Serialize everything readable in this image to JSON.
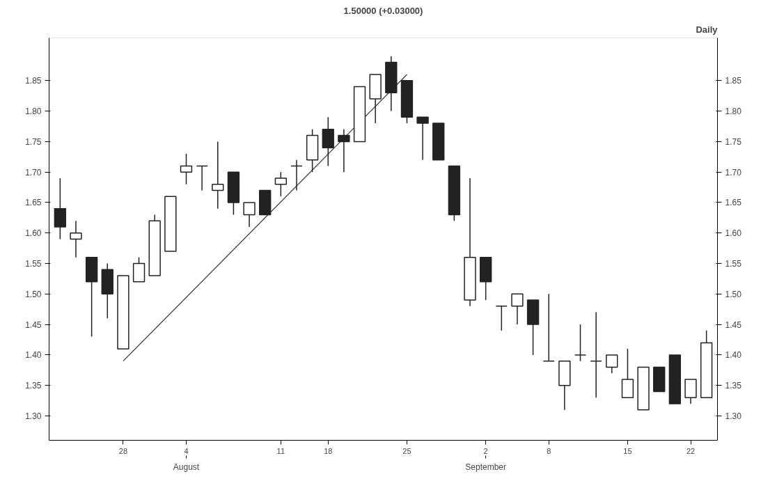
{
  "chart_data": {
    "type": "candlestick",
    "title": "1.50000 (+0.03000)",
    "annotations": [
      "Daily",
      "August",
      "September"
    ],
    "categories": [
      null,
      null,
      null,
      null,
      "28",
      null,
      null,
      null,
      "4",
      null,
      null,
      null,
      null,
      null,
      "11",
      null,
      null,
      "18",
      null,
      null,
      null,
      null,
      "25",
      null,
      null,
      null,
      null,
      "2",
      null,
      null,
      null,
      "8",
      null,
      null,
      null,
      null,
      "15",
      null,
      null,
      null,
      "22",
      null
    ],
    "ohlc": [
      [
        1.64,
        1.69,
        1.59,
        1.61
      ],
      [
        1.59,
        1.62,
        1.56,
        1.6
      ],
      [
        1.56,
        1.56,
        1.43,
        1.52
      ],
      [
        1.54,
        1.55,
        1.46,
        1.5
      ],
      [
        1.41,
        1.53,
        1.41,
        1.53
      ],
      [
        1.52,
        1.56,
        1.52,
        1.55
      ],
      [
        1.53,
        1.63,
        1.53,
        1.62
      ],
      [
        1.57,
        1.66,
        1.57,
        1.66
      ],
      [
        1.7,
        1.73,
        1.68,
        1.71
      ],
      [
        1.71,
        1.71,
        1.67,
        1.71
      ],
      [
        1.67,
        1.75,
        1.64,
        1.68
      ],
      [
        1.7,
        1.7,
        1.63,
        1.65
      ],
      [
        1.63,
        1.65,
        1.61,
        1.65
      ],
      [
        1.67,
        1.67,
        1.63,
        1.63
      ],
      [
        1.68,
        1.7,
        1.66,
        1.69
      ],
      [
        1.71,
        1.72,
        1.67,
        1.71
      ],
      [
        1.72,
        1.77,
        1.7,
        1.76
      ],
      [
        1.77,
        1.79,
        1.71,
        1.74
      ],
      [
        1.76,
        1.77,
        1.7,
        1.75
      ],
      [
        1.75,
        1.84,
        1.75,
        1.84
      ],
      [
        1.82,
        1.86,
        1.78,
        1.86
      ],
      [
        1.88,
        1.89,
        1.8,
        1.83
      ],
      [
        1.85,
        1.85,
        1.78,
        1.79
      ],
      [
        1.79,
        1.79,
        1.72,
        1.78
      ],
      [
        1.78,
        1.78,
        1.72,
        1.72
      ],
      [
        1.71,
        1.71,
        1.62,
        1.63
      ],
      [
        1.49,
        1.69,
        1.48,
        1.56
      ],
      [
        1.56,
        1.56,
        1.49,
        1.52
      ],
      [
        1.48,
        1.48,
        1.44,
        1.48
      ],
      [
        1.48,
        1.5,
        1.45,
        1.5
      ],
      [
        1.49,
        1.49,
        1.4,
        1.45
      ],
      [
        1.39,
        1.5,
        1.39,
        1.39
      ],
      [
        1.35,
        1.39,
        1.31,
        1.39
      ],
      [
        1.4,
        1.45,
        1.39,
        1.4
      ],
      [
        1.39,
        1.47,
        1.33,
        1.39
      ],
      [
        1.38,
        1.4,
        1.37,
        1.4
      ],
      [
        1.33,
        1.41,
        1.33,
        1.36
      ],
      [
        1.31,
        1.38,
        1.31,
        1.38
      ],
      [
        1.38,
        1.38,
        1.34,
        1.34
      ],
      [
        1.4,
        1.4,
        1.32,
        1.32
      ],
      [
        1.33,
        1.36,
        1.32,
        1.36
      ],
      [
        1.33,
        1.44,
        1.33,
        1.42
      ]
    ],
    "color": "#222222",
    "series": [
      {
        "type": "line",
        "color": "#333333",
        "x": [
          "28",
          "25"
        ],
        "values": [
          1.39,
          1.86
        ]
      }
    ],
    "ylim": [
      1.26,
      1.92
    ],
    "yticks": [
      {
        "value": 1.3,
        "label": "1.30"
      },
      1.35,
      {
        "value": 1.4,
        "label": "1.40"
      },
      1.45,
      {
        "value": 1.5,
        "label": "1.50"
      },
      1.55,
      {
        "value": 1.6,
        "label": "1.60"
      },
      1.65,
      {
        "value": 1.7,
        "label": "1.70"
      },
      1.75,
      {
        "value": 1.8,
        "label": "1.80"
      },
      1.85
    ],
    "y2lim": [
      1.26,
      1.92
    ],
    "y2ticks": [
      {
        "value": 1.3,
        "label": "1.30"
      },
      {
        "value": 1.35,
        "label": "1.35"
      },
      {
        "value": 1.4,
        "label": "1.40"
      },
      {
        "value": 1.45,
        "label": "1.45"
      },
      {
        "value": 1.5,
        "label": "1.50"
      },
      {
        "value": 1.55,
        "label": "1.55"
      },
      {
        "value": 1.6,
        "label": "1.60"
      },
      {
        "value": 1.65,
        "label": "1.65"
      },
      {
        "value": 1.7,
        "label": "1.70"
      },
      {
        "value": 1.75,
        "label": "1.75"
      },
      {
        "value": 1.8,
        "label": "1.80"
      },
      {
        "value": 1.85,
        "label": "1.85"
      }
    ]
  }
}
